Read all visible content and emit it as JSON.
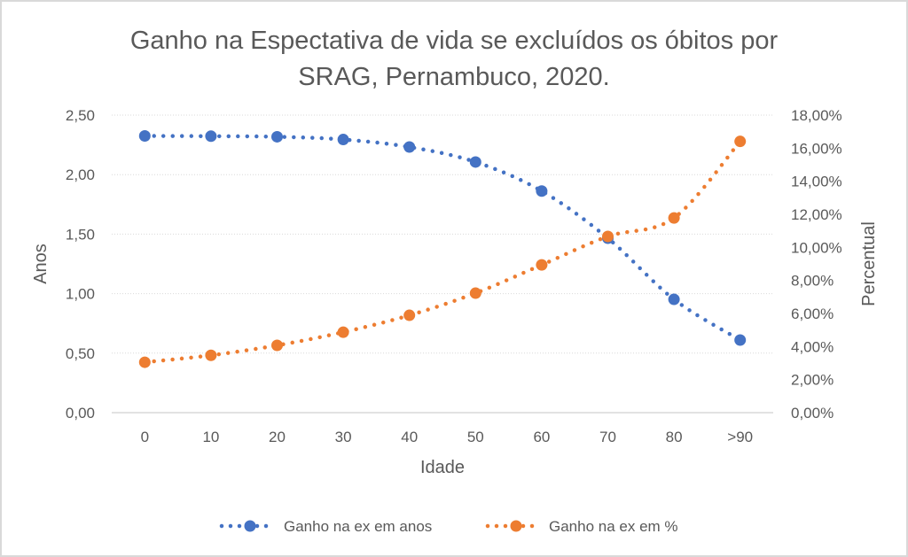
{
  "chart_data": {
    "type": "line",
    "title_lines": [
      "Ganho na Espectativa de vida se excluídos os óbitos por",
      "SRAG, Pernambuco, 2020."
    ],
    "xlabel": "Idade",
    "ylabel": "Anos",
    "y2label": "Percentual",
    "categories": [
      "0",
      "10",
      "20",
      "30",
      "40",
      "50",
      "60",
      "70",
      "80",
      ">90"
    ],
    "ylim": [
      0,
      2.5
    ],
    "y2lim": [
      0,
      18
    ],
    "yticks": [
      "0,00",
      "0,50",
      "1,00",
      "1,50",
      "2,00",
      "2,50"
    ],
    "yticks_values": [
      0,
      0.5,
      1.0,
      1.5,
      2.0,
      2.5
    ],
    "y2ticks": [
      "0,00%",
      "2,00%",
      "4,00%",
      "6,00%",
      "8,00%",
      "10,00%",
      "12,00%",
      "14,00%",
      "16,00%",
      "18,00%"
    ],
    "y2ticks_values": [
      0,
      2,
      4,
      6,
      8,
      10,
      12,
      14,
      16,
      18
    ],
    "grid": true,
    "legend_position": "bottom",
    "series": [
      {
        "name": "Ganho na ex em anos",
        "axis": "left",
        "color": "#4472c4",
        "line_style": "dotted",
        "values": [
          2.325,
          2.323,
          2.318,
          2.295,
          2.232,
          2.106,
          1.862,
          1.466,
          0.952,
          0.61
        ]
      },
      {
        "name": "Ganho na ex em %",
        "axis": "right",
        "color": "#ed7d31",
        "line_style": "dotted",
        "values": [
          3.05,
          3.47,
          4.07,
          4.87,
          5.89,
          7.23,
          8.94,
          10.66,
          11.78,
          16.41
        ]
      }
    ]
  }
}
